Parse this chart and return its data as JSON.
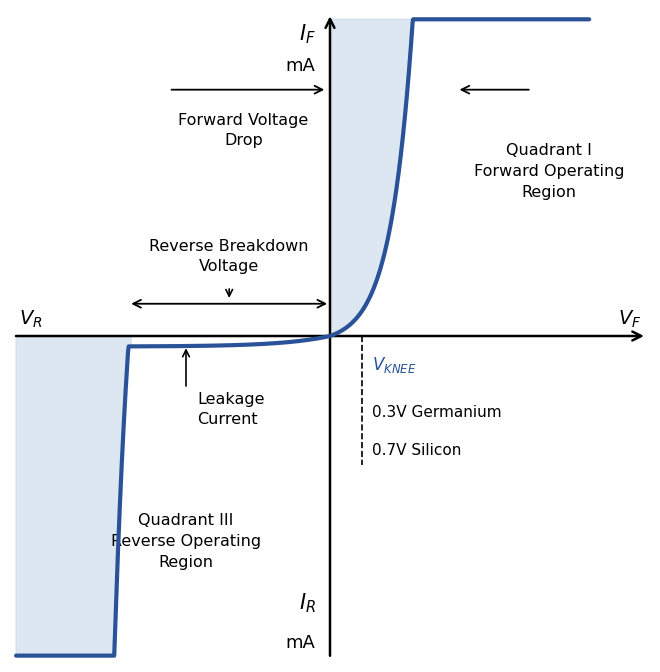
{
  "bg_color": "#ffffff",
  "curve_color": "#2a5298",
  "fill_color": "#c5d8e8",
  "fill_alpha": 0.6,
  "text_color": "#000000",
  "vknee_color": "#2a5298",
  "line_width": 3.0,
  "xlim": [
    -5.5,
    5.5
  ],
  "ylim": [
    -5.5,
    5.5
  ],
  "knee_x": 0.55,
  "breakdown_x": -3.5,
  "leakage_y": -0.18,
  "fwd_scale": 0.55,
  "fwd_k": 2.6,
  "rev_k": 3.0
}
